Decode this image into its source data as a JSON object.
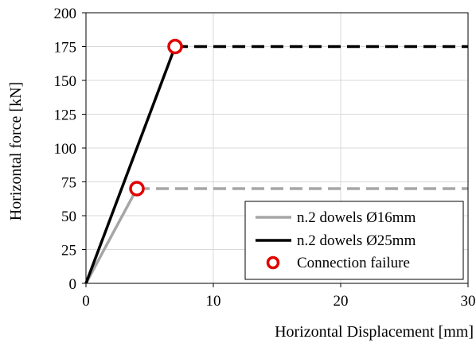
{
  "chart_data": {
    "type": "line",
    "title": "",
    "xlabel": "Horizontal Displacement [mm]",
    "ylabel": "Horizontal force [kN]",
    "xlim": [
      0,
      30
    ],
    "ylim": [
      0,
      200
    ],
    "x_ticks": [
      0,
      10,
      20,
      30
    ],
    "y_ticks": [
      0,
      25,
      50,
      75,
      100,
      125,
      150,
      175,
      200
    ],
    "x_tick_labels": [
      "0",
      "10",
      "20",
      "30"
    ],
    "y_tick_labels": [
      "0",
      "25",
      "50",
      "75",
      "100",
      "125",
      "150",
      "175",
      "200"
    ],
    "grid": true,
    "legend_position": "bottom-right",
    "series": [
      {
        "name": "n.2 dowels Ø16mm",
        "color": "#a6a6a6",
        "solid_points": [
          [
            0,
            0
          ],
          [
            4,
            70
          ]
        ],
        "dashed_points": [
          [
            4,
            70
          ],
          [
            30,
            70
          ]
        ]
      },
      {
        "name": "n.2 dowels Ø25mm",
        "color": "#000000",
        "solid_points": [
          [
            0,
            0
          ],
          [
            7,
            175
          ]
        ],
        "dashed_points": [
          [
            7,
            175
          ],
          [
            30,
            175
          ]
        ]
      }
    ],
    "markers": {
      "name": "Connection failure",
      "color": "#e00000",
      "points": [
        [
          4,
          70
        ],
        [
          7,
          175
        ]
      ]
    }
  }
}
